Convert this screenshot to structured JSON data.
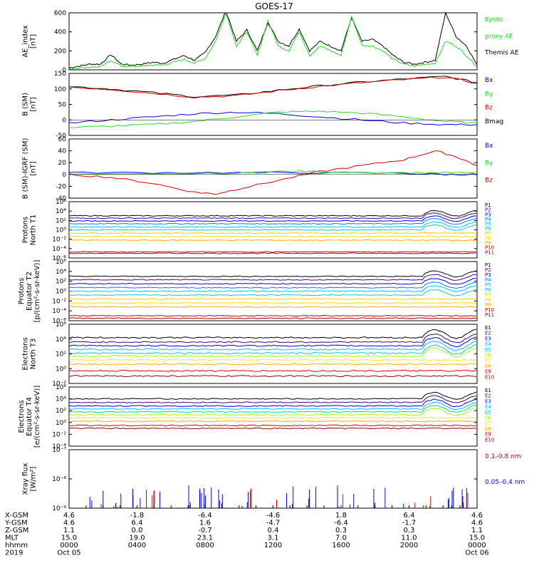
{
  "title": "GOES-17",
  "colors": {
    "black": "#000000",
    "green": "#22dd22",
    "blue": "#0000ee",
    "red": "#dd0000",
    "ae_proxy": "#22dd22"
  },
  "chart_data": [
    {
      "type": "line",
      "ylabel": [
        "AE_index",
        "[nT]"
      ],
      "yticks": [
        "0",
        "200",
        "400",
        "600"
      ],
      "ylim": [
        0,
        600
      ],
      "legend": [
        {
          "label": "Kyoto",
          "color": "#22dd22"
        },
        {
          "label": "proxy AE",
          "color": "#22dd22"
        },
        {
          "label": "Themis AE",
          "color": "#000000"
        }
      ],
      "series": [
        {
          "name": "Themis AE",
          "color": "#000000",
          "points": [
            [
              0,
              20
            ],
            [
              1,
              40
            ],
            [
              2,
              60
            ],
            [
              3,
              60
            ],
            [
              4,
              160
            ],
            [
              5,
              60
            ],
            [
              6,
              50
            ],
            [
              7,
              60
            ],
            [
              8,
              80
            ],
            [
              9,
              70
            ],
            [
              10,
              110
            ],
            [
              11,
              150
            ],
            [
              12,
              100
            ],
            [
              13,
              180
            ],
            [
              14,
              350
            ],
            [
              15,
              620
            ],
            [
              16,
              300
            ],
            [
              17,
              420
            ],
            [
              18,
              200
            ],
            [
              19,
              500
            ],
            [
              20,
              300
            ],
            [
              21,
              250
            ],
            [
              22,
              430
            ],
            [
              23,
              200
            ],
            [
              24,
              300
            ],
            [
              25,
              250
            ],
            [
              26,
              200
            ],
            [
              27,
              550
            ],
            [
              28,
              300
            ],
            [
              29,
              320
            ],
            [
              30,
              250
            ],
            [
              31,
              150
            ],
            [
              32,
              80
            ],
            [
              33,
              60
            ],
            [
              34,
              80
            ],
            [
              35,
              100
            ],
            [
              36,
              600
            ],
            [
              37,
              350
            ],
            [
              38,
              250
            ],
            [
              39,
              50
            ]
          ]
        },
        {
          "name": "Kyoto proxy AE",
          "color": "#22dd22",
          "points": [
            [
              0,
              10
            ],
            [
              1,
              20
            ],
            [
              2,
              30
            ],
            [
              3,
              30
            ],
            [
              4,
              100
            ],
            [
              5,
              40
            ],
            [
              6,
              30
            ],
            [
              7,
              40
            ],
            [
              8,
              50
            ],
            [
              9,
              50
            ],
            [
              10,
              80
            ],
            [
              11,
              110
            ],
            [
              12,
              70
            ],
            [
              13,
              120
            ],
            [
              14,
              300
            ],
            [
              15,
              600
            ],
            [
              16,
              250
            ],
            [
              17,
              400
            ],
            [
              18,
              150
            ],
            [
              19,
              520
            ],
            [
              20,
              250
            ],
            [
              21,
              200
            ],
            [
              22,
              400
            ],
            [
              23,
              150
            ],
            [
              24,
              250
            ],
            [
              25,
              200
            ],
            [
              26,
              150
            ],
            [
              27,
              560
            ],
            [
              28,
              260
            ],
            [
              29,
              250
            ],
            [
              30,
              200
            ],
            [
              31,
              110
            ],
            [
              32,
              60
            ],
            [
              33,
              40
            ],
            [
              34,
              60
            ],
            [
              35,
              70
            ],
            [
              36,
              300
            ],
            [
              37,
              250
            ],
            [
              38,
              150
            ],
            [
              39,
              30
            ]
          ]
        }
      ]
    },
    {
      "type": "line",
      "ylabel": [
        "B (SM)",
        "[nT]"
      ],
      "yticks": [
        "-50",
        "0",
        "50",
        "100",
        "150"
      ],
      "ylim": [
        -50,
        150
      ],
      "legend": [
        {
          "label": "Bx",
          "color": "#0000ee"
        },
        {
          "label": "By",
          "color": "#22dd22"
        },
        {
          "label": "Bz",
          "color": "#dd0000"
        },
        {
          "label": "Bmag",
          "color": "#000000"
        }
      ],
      "series": [
        {
          "name": "Bmag",
          "color": "#000000",
          "points": [
            [
              0,
              108
            ],
            [
              4,
              100
            ],
            [
              8,
              88
            ],
            [
              12,
              75
            ],
            [
              16,
              80
            ],
            [
              20,
              96
            ],
            [
              24,
              110
            ],
            [
              28,
              122
            ],
            [
              32,
              132
            ],
            [
              36,
              140
            ],
            [
              39,
              120
            ]
          ]
        },
        {
          "name": "Bz",
          "color": "#dd0000",
          "points": [
            [
              0,
              106
            ],
            [
              4,
              98
            ],
            [
              8,
              86
            ],
            [
              12,
              73
            ],
            [
              16,
              78
            ],
            [
              20,
              94
            ],
            [
              24,
              108
            ],
            [
              28,
              120
            ],
            [
              32,
              130
            ],
            [
              36,
              138
            ],
            [
              39,
              118
            ]
          ]
        },
        {
          "name": "Bx",
          "color": "#0000ee",
          "points": [
            [
              0,
              -10
            ],
            [
              4,
              0
            ],
            [
              8,
              10
            ],
            [
              12,
              20
            ],
            [
              16,
              25
            ],
            [
              20,
              20
            ],
            [
              24,
              10
            ],
            [
              28,
              0
            ],
            [
              32,
              -10
            ],
            [
              36,
              -15
            ],
            [
              39,
              -15
            ]
          ]
        },
        {
          "name": "By",
          "color": "#22dd22",
          "points": [
            [
              0,
              -25
            ],
            [
              4,
              -20
            ],
            [
              8,
              -15
            ],
            [
              12,
              -5
            ],
            [
              16,
              10
            ],
            [
              20,
              25
            ],
            [
              24,
              28
            ],
            [
              28,
              22
            ],
            [
              32,
              10
            ],
            [
              36,
              -5
            ],
            [
              39,
              -10
            ]
          ]
        }
      ]
    },
    {
      "type": "line",
      "ylabel": [
        "B (SM)-IGRF (SM)",
        "[nT]"
      ],
      "yticks": [
        "-40",
        "-20",
        "0",
        "20",
        "40",
        "60"
      ],
      "ylim": [
        -40,
        60
      ],
      "legend": [
        {
          "label": "Bx",
          "color": "#0000ee"
        },
        {
          "label": "By",
          "color": "#22dd22"
        },
        {
          "label": "Bz",
          "color": "#dd0000"
        }
      ],
      "series": [
        {
          "name": "Bz",
          "color": "#dd0000",
          "points": [
            [
              0,
              0
            ],
            [
              4,
              -5
            ],
            [
              8,
              -15
            ],
            [
              12,
              -30
            ],
            [
              14,
              -33
            ],
            [
              16,
              -25
            ],
            [
              20,
              -10
            ],
            [
              24,
              5
            ],
            [
              28,
              15
            ],
            [
              32,
              25
            ],
            [
              35,
              40
            ],
            [
              37,
              30
            ],
            [
              39,
              15
            ]
          ]
        },
        {
          "name": "Bx",
          "color": "#0000ee",
          "points": [
            [
              0,
              3
            ],
            [
              8,
              3
            ],
            [
              16,
              3
            ],
            [
              24,
              3
            ],
            [
              32,
              2
            ],
            [
              36,
              0
            ],
            [
              39,
              0
            ]
          ]
        },
        {
          "name": "By",
          "color": "#22dd22",
          "points": [
            [
              0,
              0
            ],
            [
              8,
              0
            ],
            [
              16,
              2
            ],
            [
              20,
              5
            ],
            [
              24,
              5
            ],
            [
              32,
              3
            ],
            [
              36,
              3
            ],
            [
              39,
              2
            ]
          ]
        }
      ]
    },
    {
      "type": "line",
      "ylabel": [
        "Protons",
        "North T1"
      ],
      "yticks": [
        "10⁻⁶",
        "10⁻⁴",
        "10⁻²",
        "10⁰",
        "10²",
        "10⁴",
        "10⁶"
      ],
      "ylog": [
        -6,
        6
      ],
      "legend": [
        {
          "label": "P1",
          "color": "#000000"
        },
        {
          "label": "P2",
          "color": "#4b0082"
        },
        {
          "label": "P3",
          "color": "#0000ee"
        },
        {
          "label": "P4",
          "color": "#0080ff"
        },
        {
          "label": "P5",
          "color": "#00bfff"
        },
        {
          "label": "P6",
          "color": "#00ced1"
        },
        {
          "label": "P7",
          "color": "#ffcc00"
        },
        {
          "label": "P8",
          "color": "#ffdd00"
        },
        {
          "label": "P9",
          "color": "#ffaa00"
        },
        {
          "label": "P10",
          "color": "#cc0000"
        },
        {
          "label": "P11",
          "color": "#990000"
        }
      ],
      "levels": [
        3.0,
        2.5,
        1.9,
        1.3,
        0.6,
        0.0,
        -0.7,
        -1.4,
        -2.2,
        -4.7,
        -5.0
      ]
    },
    {
      "type": "line",
      "ylabel": [
        "Protons",
        "Equator T2",
        "[p/(cm²-s-sr-keV)]"
      ],
      "yticks": [
        "10⁻⁶",
        "10⁻⁴",
        "10⁻²",
        "10⁰",
        "10²",
        "10⁴",
        "10⁶"
      ],
      "ylog": [
        -6,
        6
      ],
      "legend": [
        {
          "label": "P1",
          "color": "#000000"
        },
        {
          "label": "P2",
          "color": "#4b0082"
        },
        {
          "label": "P3",
          "color": "#0000ee"
        },
        {
          "label": "P4",
          "color": "#0080ff"
        },
        {
          "label": "P5",
          "color": "#00bfff"
        },
        {
          "label": "P6",
          "color": "#00ced1"
        },
        {
          "label": "P7",
          "color": "#ffcc00"
        },
        {
          "label": "P8",
          "color": "#ffdd00"
        },
        {
          "label": "P9",
          "color": "#ffaa00"
        },
        {
          "label": "P10",
          "color": "#cc0000"
        },
        {
          "label": "P11",
          "color": "#990000"
        }
      ],
      "levels": [
        3.0,
        2.3,
        1.5,
        0.7,
        0.0,
        -0.8,
        -1.6,
        -2.4,
        -3.2,
        -5.0,
        -5.5
      ]
    },
    {
      "type": "line",
      "ylabel": [
        "Electrons",
        "North T3"
      ],
      "yticks": [
        "10⁻²",
        "10⁰",
        "10²",
        "10⁴",
        "10⁶"
      ],
      "ylog": [
        -2,
        6
      ],
      "legend": [
        {
          "label": "E1",
          "color": "#000000"
        },
        {
          "label": "E2",
          "color": "#4b0082"
        },
        {
          "label": "E3",
          "color": "#0000ee"
        },
        {
          "label": "E4",
          "color": "#00bfff"
        },
        {
          "label": "E5",
          "color": "#00ced1"
        },
        {
          "label": "E6",
          "color": "#aaff00"
        },
        {
          "label": "E7",
          "color": "#ffee00"
        },
        {
          "label": "E8",
          "color": "#ffaa00"
        },
        {
          "label": "E9",
          "color": "#dd0000"
        },
        {
          "label": "E10",
          "color": "#990000"
        }
      ],
      "levels": [
        4.2,
        3.6,
        3.1,
        2.6,
        2.1,
        1.7,
        1.2,
        0.6,
        -0.3,
        -1.0
      ]
    },
    {
      "type": "line",
      "ylabel": [
        "Electrons",
        "Equator T4",
        "[e/(cm²-s-sr-keV)]"
      ],
      "yticks": [
        "10⁻⁴",
        "10⁻²",
        "10⁰",
        "10²",
        "10⁴",
        "10⁶"
      ],
      "ylog": [
        -4,
        6
      ],
      "legend": [
        {
          "label": "E1",
          "color": "#000000"
        },
        {
          "label": "E2",
          "color": "#4b0082"
        },
        {
          "label": "E3",
          "color": "#0000ee"
        },
        {
          "label": "E4",
          "color": "#00bfff"
        },
        {
          "label": "E5",
          "color": "#00ced1"
        },
        {
          "label": "E6",
          "color": "#aaff00"
        },
        {
          "label": "E7",
          "color": "#ffee00"
        },
        {
          "label": "E8",
          "color": "#ffaa00"
        },
        {
          "label": "E9",
          "color": "#dd0000"
        },
        {
          "label": "E10",
          "color": "#990000"
        }
      ],
      "levels": [
        4.0,
        3.4,
        2.8,
        2.3,
        1.8,
        1.3,
        0.8,
        0.2,
        -0.5,
        -1.0
      ]
    },
    {
      "type": "bar",
      "ylabel": [
        "Xray flux",
        "[W/m²]"
      ],
      "yticks": [
        "10⁻⁹",
        "10⁻⁸",
        "10⁻⁷"
      ],
      "ylog": [
        -9,
        -7
      ],
      "legend": [
        {
          "label": "0.1–0.8 nm",
          "color": "#dd0000"
        },
        {
          "label": "0.05–0.4 nm",
          "color": "#0000ee"
        }
      ]
    }
  ],
  "xaxis": {
    "rows": [
      {
        "label": "X-GSM",
        "values": [
          "4.6",
          "-1.8",
          "-6.4",
          "-4.6",
          "1.8",
          "6.4",
          "4.6"
        ]
      },
      {
        "label": "Y-GSM",
        "values": [
          "4.6",
          "6.4",
          "1.6",
          "-4.7",
          "-6.4",
          "-1.7",
          "4.6"
        ]
      },
      {
        "label": "Z-GSM",
        "values": [
          "1.1",
          "0.0",
          "-0.7",
          "0.4",
          "0.3",
          "0.3",
          "1.1"
        ]
      },
      {
        "label": "MLT",
        "values": [
          "15.0",
          "19.0",
          "23.1",
          "3.1",
          "7.0",
          "11.0",
          "15.0"
        ]
      },
      {
        "label": "hhmm",
        "values": [
          "0000",
          "0400",
          "0800",
          "1200",
          "1600",
          "2000",
          "0000"
        ]
      },
      {
        "label": "2019",
        "values": [
          "Oct 05",
          "",
          "",
          "",
          "",
          "",
          "Oct 06"
        ]
      }
    ]
  }
}
